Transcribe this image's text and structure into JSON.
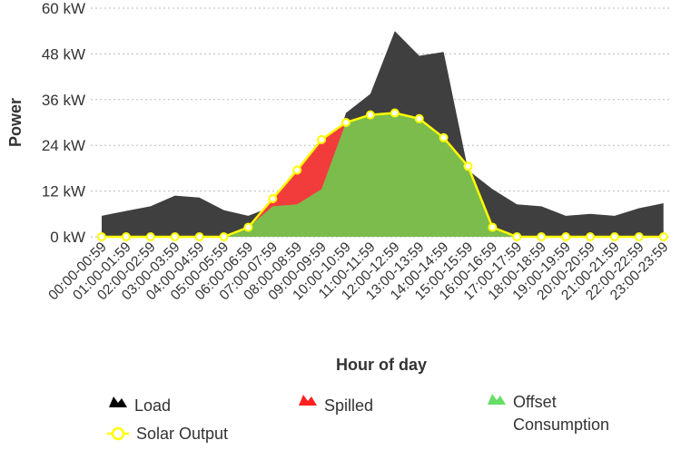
{
  "chart_data": {
    "type": "area",
    "title": "",
    "xlabel": "Hour of day",
    "ylabel": "Power",
    "ylim": [
      0,
      60
    ],
    "y_ticks": [
      0,
      12,
      24,
      36,
      48,
      60
    ],
    "y_tick_labels": [
      "0 kW",
      "12 kW",
      "24 kW",
      "36 kW",
      "48 kW",
      "60 kW"
    ],
    "grid": true,
    "legend_position": "bottom",
    "categories": [
      "00:00-00:59",
      "01:00-01:59",
      "02:00-02:59",
      "03:00-03:59",
      "04:00-04:59",
      "05:00-05:59",
      "06:00-06:59",
      "07:00-07:59",
      "08:00-08:59",
      "09:00-09:59",
      "10:00-10:59",
      "11:00-11:59",
      "12:00-12:59",
      "13:00-13:59",
      "14:00-14:59",
      "15:00-15:59",
      "16:00-16:59",
      "17:00-17:59",
      "18:00-18:59",
      "19:00-19:59",
      "20:00-20:59",
      "21:00-21:59",
      "22:00-22:59",
      "23:00-23:59"
    ],
    "series": [
      {
        "name": "Load",
        "kind": "area",
        "color": "#3f3f3f",
        "values": [
          5.5,
          6.8,
          8,
          10.8,
          10.3,
          7,
          5.5,
          8,
          8.5,
          12.5,
          32.5,
          37.5,
          54,
          47.5,
          48.5,
          17.5,
          12.5,
          8.5,
          8,
          5.5,
          6,
          5.5,
          7.5,
          8.8
        ]
      },
      {
        "name": "Spilled",
        "kind": "area",
        "color": "#f23c3c",
        "values": [
          0,
          0,
          0,
          0,
          0,
          0,
          2.5,
          10,
          17.5,
          25.5,
          30,
          32,
          32.5,
          31,
          26,
          18.5,
          2.5,
          0,
          0,
          0,
          0,
          0,
          0,
          0
        ]
      },
      {
        "name": "Offset Consumption",
        "kind": "area",
        "color": "#7cbc4c",
        "values": [
          0,
          0,
          0,
          0,
          0,
          0,
          2.5,
          8,
          8.5,
          12.5,
          30,
          32,
          32.5,
          31,
          26,
          18.5,
          2.5,
          0,
          0,
          0,
          0,
          0,
          0,
          0
        ]
      },
      {
        "name": "Solar Output",
        "kind": "line",
        "color": "#ffff00",
        "values": [
          0,
          0,
          0,
          0,
          0,
          0,
          2.5,
          10,
          17.5,
          25.5,
          30,
          32,
          32.5,
          31,
          26,
          18.5,
          2.5,
          0,
          0,
          0,
          0,
          0,
          0,
          0
        ]
      }
    ],
    "legend_colors": {
      "Load": "#000000",
      "Spilled": "#ff2020",
      "Offset Consumption": "#66dd66",
      "Solar Output": "#ffff00"
    }
  }
}
